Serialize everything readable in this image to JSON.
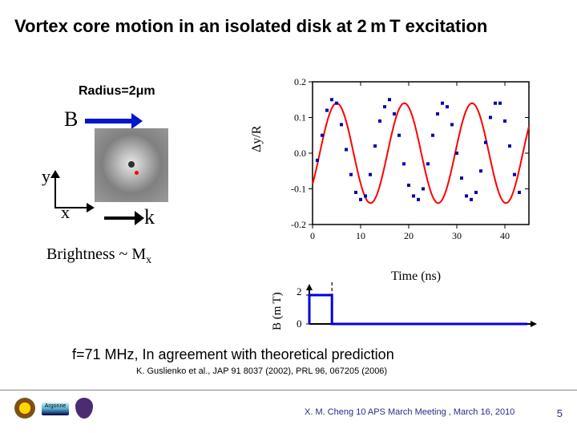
{
  "title": "Vortex core motion in an isolated disk at 2 m T excitation",
  "radius_label": "Radius=2μm",
  "B_label": "B",
  "y_label": "y",
  "x_label": "x",
  "k_label": "k",
  "brightness_html": "Brightness ~ M<sub>x</sub>",
  "chart": {
    "type": "line+scatter",
    "xlabel": "Time (ns)",
    "ylabel": "Δy/R",
    "xlim": [
      0,
      45
    ],
    "ylim": [
      -0.2,
      0.2
    ],
    "xticks": [
      0,
      10,
      20,
      30,
      40
    ],
    "yticks": [
      -0.2,
      -0.1,
      0.0,
      0.1,
      0.2
    ],
    "background_color": "#ffffff",
    "axis_color": "#000000",
    "line_color": "#ff0000",
    "line_width": 2,
    "marker_color": "#0000aa",
    "marker_size": 4,
    "label_fontsize": 16,
    "tick_fontsize": 12,
    "scatter_x": [
      1,
      2,
      3,
      4,
      5,
      6,
      7,
      8,
      9,
      10,
      11,
      12,
      13,
      14,
      15,
      16,
      17,
      18,
      19,
      20,
      21,
      22,
      23,
      24,
      25,
      26,
      27,
      28,
      29,
      30,
      31,
      32,
      33,
      34,
      35,
      36,
      37,
      38,
      39,
      40,
      41,
      42,
      43
    ],
    "scatter_y": [
      -0.02,
      0.05,
      0.12,
      0.15,
      0.14,
      0.08,
      0.01,
      -0.06,
      -0.11,
      -0.13,
      -0.12,
      -0.06,
      0.02,
      0.09,
      0.13,
      0.15,
      0.11,
      0.05,
      -0.03,
      -0.09,
      -0.12,
      -0.13,
      -0.1,
      -0.03,
      0.05,
      0.11,
      0.14,
      0.13,
      0.08,
      0.0,
      -0.07,
      -0.12,
      -0.13,
      -0.11,
      -0.05,
      0.03,
      0.1,
      0.14,
      0.14,
      0.09,
      0.02,
      -0.06,
      -0.11
    ],
    "fit_amplitude": 0.14,
    "fit_freq_mhz": 71,
    "fit_period_ns": 14.08,
    "fit_phase_ns": 1.5
  },
  "pulse": {
    "ylabel": "B (m T)",
    "y_ticks": [
      0,
      2
    ],
    "x_range": [
      0,
      45
    ],
    "pulse_start_ns": 0,
    "pulse_end_ns": 4.5,
    "pulse_amplitude_mT": 2,
    "line_color": "#0000dd",
    "line_width": 3,
    "dashed_marker_x": 4.5,
    "dashed_color": "#000000"
  },
  "conclusion": "f=71 MHz, In agreement with theoretical prediction",
  "citation": "K. Guslienko et al., JAP 91 8037 (2002), PRL 96, 067205 (2006)",
  "footer_text": "X. M. Cheng 10 APS March Meeting , March 16, 2010",
  "page_num": "5",
  "logo_argonne_text": "Argonne",
  "colors": {
    "title_color": "#000000",
    "blue_arrow": "#0016cc",
    "footer_color": "#2a2a8a"
  }
}
